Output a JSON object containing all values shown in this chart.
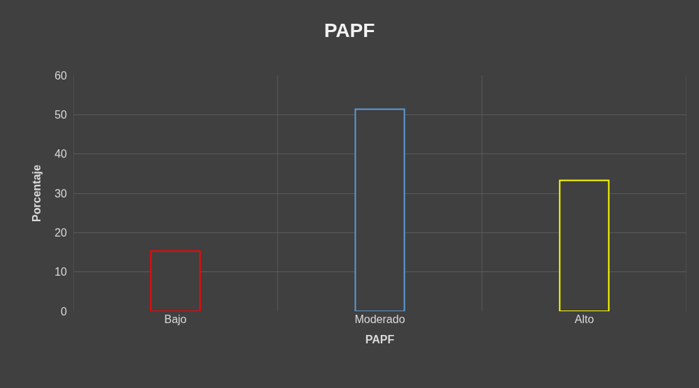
{
  "chart_data": {
    "type": "bar",
    "title": "PAPF",
    "xlabel": "PAPF",
    "ylabel": "Porcentaje",
    "categories": [
      "Bajo",
      "Moderado",
      "Alto"
    ],
    "values": [
      15.3,
      51.4,
      33.3
    ],
    "colors": [
      "#ff0000",
      "#5b9bd5",
      "#ffff00"
    ],
    "ylim": [
      0,
      60
    ],
    "yticks": [
      0,
      10,
      20,
      30,
      40,
      50,
      60
    ],
    "grid": true
  }
}
